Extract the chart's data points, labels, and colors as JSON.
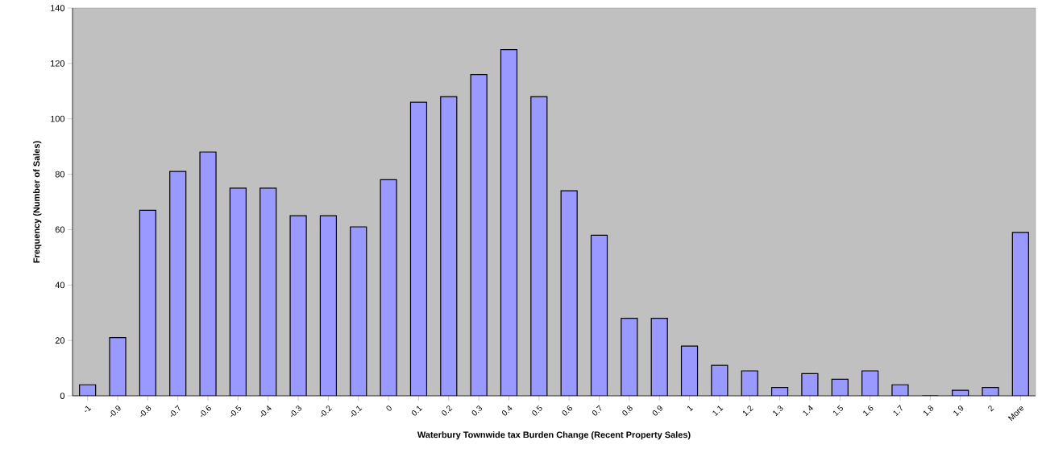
{
  "chart_data": {
    "type": "bar",
    "xlabel": "Waterbury Townwide tax Burden Change (Recent Property Sales)",
    "ylabel": "Frequency (Number of Sales)",
    "categories": [
      "-1",
      "-0.9",
      "-0.8",
      "-0.7",
      "-0.6",
      "-0.5",
      "-0.4",
      "-0.3",
      "-0.2",
      "-0.1",
      "0",
      "0.1",
      "0.2",
      "0.3",
      "0.4",
      "0.5",
      "0.6",
      "0.7",
      "0.8",
      "0.9",
      "1",
      "1.1",
      "1.2",
      "1.3",
      "1.4",
      "1.5",
      "1.6",
      "1.7",
      "1.8",
      "1.9",
      "2",
      "More"
    ],
    "values": [
      4,
      21,
      67,
      81,
      88,
      75,
      75,
      65,
      65,
      61,
      78,
      106,
      108,
      116,
      125,
      108,
      74,
      58,
      28,
      28,
      18,
      11,
      9,
      3,
      8,
      6,
      9,
      4,
      0,
      2,
      3,
      59
    ],
    "color": "#9999ff",
    "ylim": [
      0,
      140
    ],
    "yticks": [
      0,
      20,
      40,
      60,
      80,
      100,
      120,
      140
    ]
  }
}
